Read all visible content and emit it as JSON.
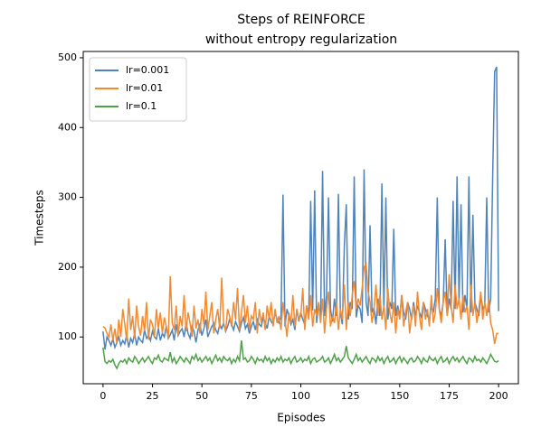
{
  "chart_data": {
    "type": "line",
    "title": "Steps of REINFORCE",
    "subtitle": "without entropy regularization",
    "x_label": "Episodes",
    "y_label": "Timesteps",
    "x": [
      0,
      1,
      2,
      3,
      4,
      5,
      6,
      7,
      8,
      9,
      10,
      11,
      12,
      13,
      14,
      15,
      16,
      17,
      18,
      19,
      20,
      21,
      22,
      23,
      24,
      25,
      26,
      27,
      28,
      29,
      30,
      31,
      32,
      33,
      34,
      35,
      36,
      37,
      38,
      39,
      40,
      41,
      42,
      43,
      44,
      45,
      46,
      47,
      48,
      49,
      50,
      51,
      52,
      53,
      54,
      55,
      56,
      57,
      58,
      59,
      60,
      61,
      62,
      63,
      64,
      65,
      66,
      67,
      68,
      69,
      70,
      71,
      72,
      73,
      74,
      75,
      76,
      77,
      78,
      79,
      80,
      81,
      82,
      83,
      84,
      85,
      86,
      87,
      88,
      89,
      90,
      91,
      92,
      93,
      94,
      95,
      96,
      97,
      98,
      99,
      100,
      101,
      102,
      103,
      104,
      105,
      106,
      107,
      108,
      109,
      110,
      111,
      112,
      113,
      114,
      115,
      116,
      117,
      118,
      119,
      120,
      121,
      122,
      123,
      124,
      125,
      126,
      127,
      128,
      129,
      130,
      131,
      132,
      133,
      134,
      135,
      136,
      137,
      138,
      139,
      140,
      141,
      142,
      143,
      144,
      145,
      146,
      147,
      148,
      149,
      150,
      151,
      152,
      153,
      154,
      155,
      156,
      157,
      158,
      159,
      160,
      161,
      162,
      163,
      164,
      165,
      166,
      167,
      168,
      169,
      170,
      171,
      172,
      173,
      174,
      175,
      176,
      177,
      178,
      179,
      180,
      181,
      182,
      183,
      184,
      185,
      186,
      187,
      188,
      189,
      190,
      191,
      192,
      193,
      194,
      195,
      196,
      197,
      198,
      199,
      200
    ],
    "series": [
      {
        "name": "lr=0.001",
        "color": "#4f83b9",
        "values": [
          108,
          82,
          100,
          95,
          88,
          97,
          85,
          92,
          100,
          88,
          95,
          90,
          103,
          85,
          98,
          92,
          105,
          88,
          100,
          95,
          92,
          110,
          98,
          102,
          95,
          108,
          100,
          97,
          112,
          95,
          105,
          100,
          115,
          98,
          103,
          110,
          95,
          118,
          102,
          108,
          112,
          100,
          120,
          105,
          98,
          115,
          108,
          92,
          110,
          118,
          102,
          112,
          125,
          100,
          108,
          115,
          120,
          110,
          105,
          118,
          112,
          120,
          108,
          115,
          125,
          118,
          110,
          122,
          115,
          108,
          120,
          128,
          112,
          118,
          105,
          115,
          122,
          110,
          125,
          118,
          115,
          128,
          120,
          112,
          130,
          122,
          118,
          135,
          125,
          120,
          128,
          304,
          115,
          140,
          130,
          118,
          125,
          110,
          140,
          122,
          135,
          125,
          118,
          145,
          128,
          295,
          138,
          310,
          120,
          148,
          125,
          338,
          130,
          160,
          300,
          140,
          122,
          155,
          130,
          305,
          135,
          118,
          230,
          290,
          125,
          150,
          140,
          330,
          128,
          145,
          140,
          120,
          340,
          150,
          130,
          260,
          135,
          142,
          118,
          155,
          130,
          320,
          140,
          300,
          125,
          150,
          140,
          255,
          130,
          145,
          128,
          160,
          135,
          125,
          150,
          140,
          125,
          150,
          130,
          145,
          135,
          128,
          150,
          140,
          130,
          125,
          145,
          135,
          155,
          300,
          140,
          130,
          150,
          240,
          130,
          155,
          140,
          295,
          140,
          330,
          150,
          290,
          135,
          160,
          140,
          330,
          135,
          275,
          150,
          140,
          130,
          160,
          140,
          145,
          300,
          135,
          155,
          330,
          480,
          487,
          137
        ]
      },
      {
        "name": "lr=0.01",
        "color": "#f08a33",
        "values": [
          115,
          113,
          105,
          100,
          118,
          95,
          112,
          90,
          125,
          100,
          140,
          118,
          95,
          155,
          110,
          130,
          98,
          145,
          115,
          102,
          130,
          108,
          150,
          96,
          125,
          118,
          100,
          140,
          112,
          135,
          105,
          128,
          115,
          98,
          187,
          120,
          110,
          145,
          102,
          130,
          115,
          160,
          108,
          135,
          120,
          100,
          145,
          112,
          125,
          105,
          140,
          118,
          165,
          110,
          130,
          150,
          105,
          125,
          140,
          112,
          185,
          120,
          108,
          140,
          130,
          115,
          150,
          125,
          170,
          110,
          135,
          160,
          120,
          145,
          110,
          130,
          125,
          150,
          105,
          140,
          120,
          135,
          110,
          145,
          125,
          150,
          115,
          140,
          120,
          130,
          110,
          150,
          125,
          100,
          135,
          120,
          160,
          115,
          140,
          125,
          130,
          170,
          110,
          145,
          125,
          160,
          115,
          140,
          130,
          150,
          120,
          155,
          105,
          140,
          165,
          115,
          130,
          120,
          150,
          110,
          140,
          125,
          175,
          110,
          150,
          130,
          160,
          180,
          140,
          155,
          145,
          170,
          200,
          205,
          165,
          150,
          120,
          140,
          175,
          130,
          160,
          125,
          145,
          110,
          170,
          135,
          120,
          150,
          105,
          140,
          125,
          160,
          115,
          135,
          150,
          105,
          130,
          145,
          115,
          165,
          130,
          110,
          150,
          125,
          140,
          115,
          160,
          120,
          135,
          170,
          140,
          120,
          150,
          165,
          130,
          190,
          145,
          120,
          175,
          140,
          155,
          125,
          160,
          135,
          145,
          110,
          175,
          130,
          150,
          120,
          140,
          165,
          125,
          150,
          130,
          155,
          120,
          110,
          90,
          105,
          105
        ]
      },
      {
        "name": "lr=0.1",
        "color": "#4ea048",
        "values": [
          85,
          65,
          62,
          66,
          64,
          68,
          60,
          55,
          62,
          66,
          64,
          68,
          62,
          70,
          66,
          64,
          72,
          68,
          62,
          66,
          70,
          64,
          68,
          72,
          66,
          62,
          70,
          68,
          74,
          66,
          64,
          70,
          68,
          66,
          78,
          64,
          70,
          62,
          66,
          72,
          68,
          64,
          70,
          66,
          62,
          72,
          68,
          75,
          66,
          70,
          64,
          68,
          72,
          66,
          70,
          62,
          68,
          74,
          66,
          70,
          64,
          72,
          68,
          66,
          70,
          62,
          68,
          64,
          72,
          66,
          95,
          68,
          70,
          64,
          66,
          72,
          68,
          62,
          70,
          66,
          68,
          64,
          72,
          66,
          70,
          62,
          68,
          64,
          70,
          66,
          72,
          64,
          68,
          66,
          70,
          62,
          68,
          72,
          64,
          66,
          70,
          64,
          68,
          66,
          72,
          62,
          68,
          70,
          64,
          66,
          68,
          72,
          64,
          66,
          70,
          62,
          68,
          75,
          66,
          70,
          64,
          68,
          72,
          87,
          70,
          66,
          62,
          68,
          75,
          66,
          70,
          64,
          68,
          72,
          66,
          62,
          70,
          68,
          64,
          72,
          66,
          70,
          62,
          68,
          72,
          64,
          66,
          70,
          62,
          68,
          72,
          64,
          70,
          66,
          62,
          68,
          70,
          64,
          66,
          72,
          68,
          62,
          70,
          66,
          64,
          72,
          68,
          66,
          70,
          62,
          68,
          72,
          64,
          66,
          70,
          62,
          68,
          72,
          66,
          70,
          64,
          68,
          72,
          66,
          62,
          70,
          68,
          64,
          72,
          66,
          68,
          64,
          70,
          66,
          62,
          68,
          75,
          70,
          65,
          64,
          66
        ]
      }
    ],
    "xlim": [
      -10,
      210
    ],
    "ylim": [
      33,
      509
    ],
    "xticks": [
      0,
      25,
      50,
      75,
      100,
      125,
      150,
      175,
      200
    ],
    "yticks": [
      100,
      200,
      300,
      400,
      500
    ],
    "legend": "upper left"
  }
}
